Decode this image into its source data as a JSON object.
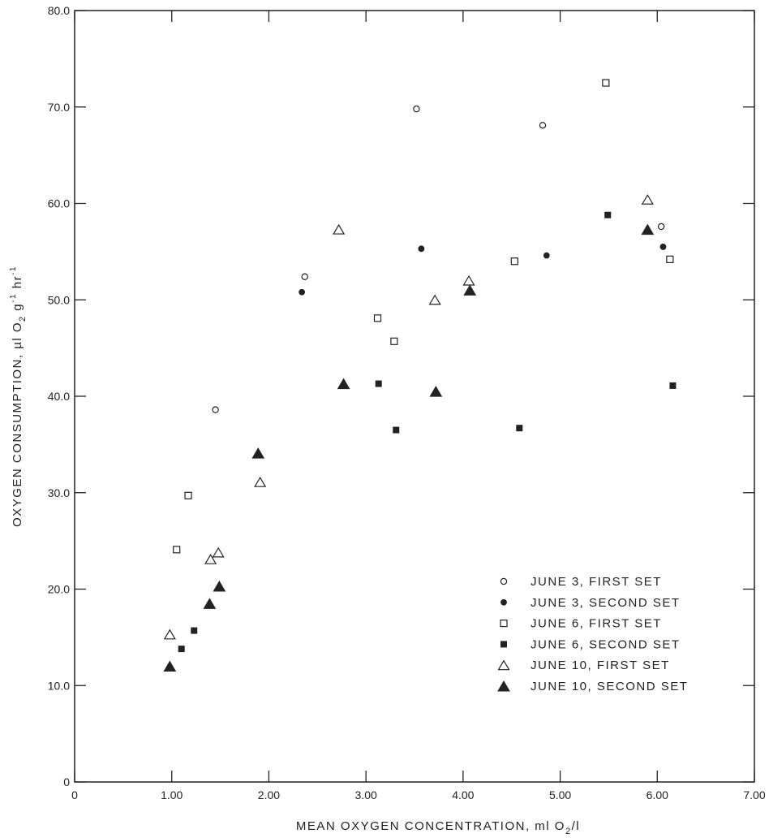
{
  "chart_data": {
    "type": "scatter",
    "title": "",
    "xlabel": "MEAN  OXYGEN  CONCENTRATION, ml O",
    "xlabel_sub": "2",
    "xlabel_tail": "/l",
    "ylabel": "OXYGEN  CONSUMPTION, µl O",
    "ylabel_sub": "2",
    "ylabel_mid": " g",
    "ylabel_sup1": "-1",
    "ylabel_mid2": " hr",
    "ylabel_sup2": "-1",
    "xlim": [
      0,
      7
    ],
    "ylim": [
      0,
      80
    ],
    "x_ticks": [
      0,
      1,
      2,
      3,
      4,
      5,
      6,
      7
    ],
    "x_tick_labels": [
      "0",
      "1.00",
      "2.00",
      "3.00",
      "4.00",
      "5.00",
      "6.00",
      "7.00"
    ],
    "y_ticks": [
      0,
      10,
      20,
      30,
      40,
      50,
      60,
      70,
      80
    ],
    "y_tick_labels": [
      "0",
      "10.0",
      "20.0",
      "30.0",
      "40.0",
      "50.0",
      "60.0",
      "70.0",
      "80.0"
    ],
    "grid": false,
    "legend_position": "bottom-right",
    "series": [
      {
        "name": "JUNE 3,  FIRST  SET",
        "marker": "circle-open",
        "points": [
          [
            1.45,
            38.6
          ],
          [
            2.37,
            52.4
          ],
          [
            3.52,
            69.8
          ],
          [
            4.82,
            68.1
          ],
          [
            6.04,
            57.6
          ]
        ]
      },
      {
        "name": "JUNE 3,  SECOND  SET",
        "marker": "circle-filled",
        "points": [
          [
            2.34,
            50.8
          ],
          [
            3.57,
            55.3
          ],
          [
            4.86,
            54.6
          ],
          [
            6.06,
            55.5
          ]
        ]
      },
      {
        "name": "JUNE 6,  FIRST  SET",
        "marker": "square-open",
        "points": [
          [
            1.05,
            24.1
          ],
          [
            1.17,
            29.7
          ],
          [
            3.12,
            48.1
          ],
          [
            3.29,
            45.7
          ],
          [
            4.53,
            54.0
          ],
          [
            5.47,
            72.5
          ],
          [
            6.13,
            54.2
          ]
        ]
      },
      {
        "name": "JUNE 6,  SECOND  SET",
        "marker": "square-filled",
        "points": [
          [
            1.1,
            13.8
          ],
          [
            1.23,
            15.7
          ],
          [
            3.13,
            41.3
          ],
          [
            3.31,
            36.5
          ],
          [
            4.58,
            36.7
          ],
          [
            5.49,
            58.8
          ],
          [
            6.16,
            41.1
          ]
        ]
      },
      {
        "name": "JUNE 10,  FIRST  SET",
        "marker": "triangle-open",
        "points": [
          [
            0.98,
            15.3
          ],
          [
            1.4,
            23.1
          ],
          [
            1.48,
            23.8
          ],
          [
            1.91,
            31.1
          ],
          [
            2.72,
            57.3
          ],
          [
            3.71,
            50.0
          ],
          [
            4.06,
            52.0
          ],
          [
            5.9,
            60.4
          ]
        ]
      },
      {
        "name": "JUNE 10,  SECOND  SET",
        "marker": "triangle-filled",
        "points": [
          [
            0.98,
            12.0
          ],
          [
            1.39,
            18.5
          ],
          [
            1.49,
            20.3
          ],
          [
            1.89,
            34.1
          ],
          [
            2.77,
            41.3
          ],
          [
            3.72,
            40.5
          ],
          [
            4.07,
            51.0
          ],
          [
            5.9,
            57.3
          ]
        ]
      }
    ]
  }
}
